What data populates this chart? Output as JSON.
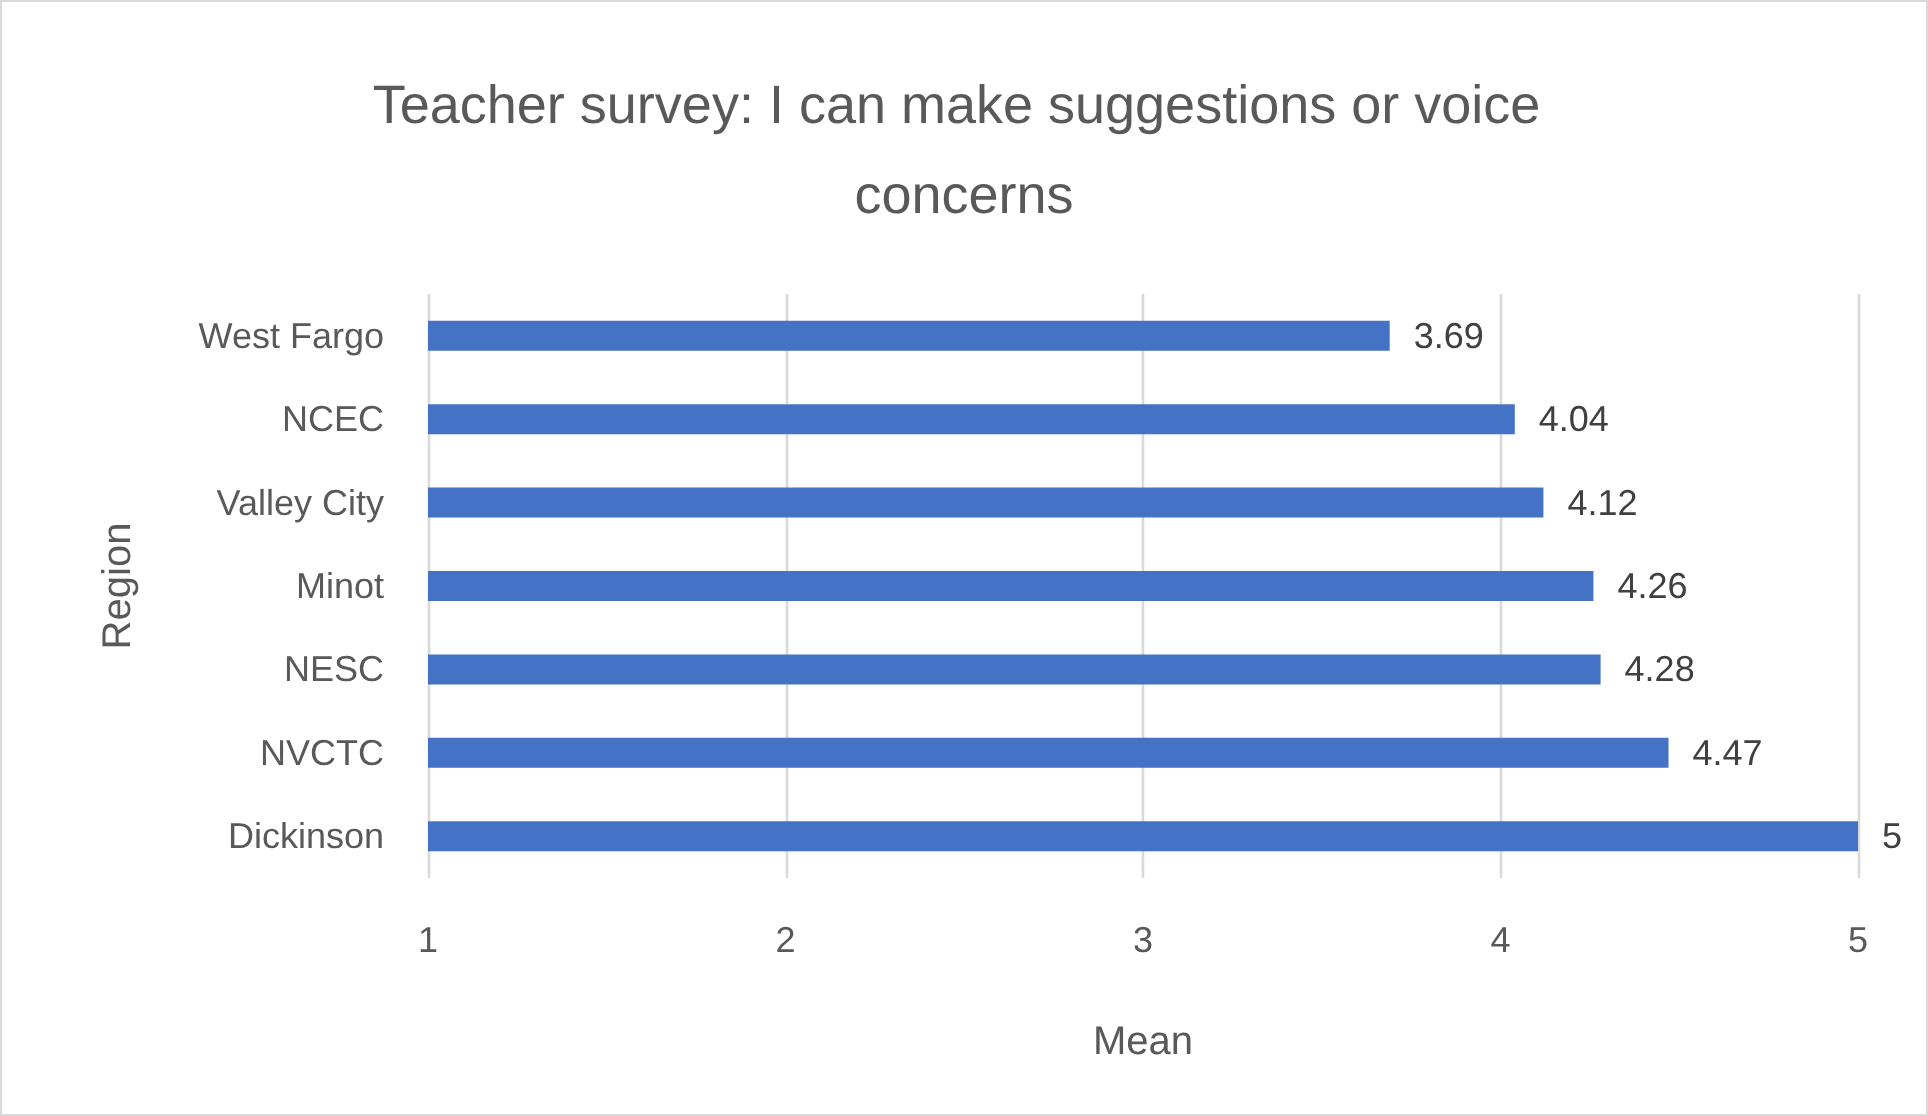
{
  "chart_data": {
    "type": "bar",
    "orientation": "horizontal",
    "title": "Teacher survey: I can make suggestions or voice concerns",
    "xlabel": "Mean",
    "ylabel": "Region",
    "categories": [
      "West Fargo",
      "NCEC",
      "Valley City",
      "Minot",
      "NESC",
      "NVCTC",
      "Dickinson"
    ],
    "values": [
      3.69,
      4.04,
      4.12,
      4.26,
      4.28,
      4.47,
      5
    ],
    "color": "#4472c4",
    "xlim": [
      1,
      5
    ],
    "xticks": [
      1,
      2,
      3,
      4,
      5
    ],
    "grid": "x",
    "data_labels": true
  }
}
